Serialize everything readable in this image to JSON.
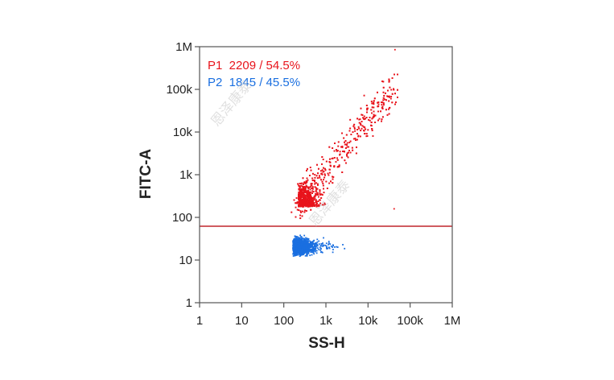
{
  "chart_data": {
    "type": "scatter",
    "xlabel": "SS-H",
    "ylabel": "FITC-A",
    "x_scale": "log",
    "y_scale": "log",
    "xlim": [
      1,
      1000000
    ],
    "ylim": [
      1,
      1000000
    ],
    "x_ticks": [
      {
        "value": 1,
        "label": "1"
      },
      {
        "value": 10,
        "label": "10"
      },
      {
        "value": 100,
        "label": "100"
      },
      {
        "value": 1000,
        "label": "1k"
      },
      {
        "value": 10000,
        "label": "10k"
      },
      {
        "value": 100000,
        "label": "100k"
      },
      {
        "value": 1000000,
        "label": "1M"
      }
    ],
    "y_ticks": [
      {
        "value": 1,
        "label": "1"
      },
      {
        "value": 10,
        "label": "10"
      },
      {
        "value": 100,
        "label": "100"
      },
      {
        "value": 1000,
        "label": "1k"
      },
      {
        "value": 10000,
        "label": "10k"
      },
      {
        "value": 100000,
        "label": "100k"
      },
      {
        "value": 1000000,
        "label": "1M"
      }
    ],
    "gate_threshold_y": 62,
    "gate_line_color": "#c0262c",
    "series": [
      {
        "name": "P1",
        "label": "P1  2209 / 54.5%",
        "count": 2209,
        "percent": 54.5,
        "color": "#e8141c",
        "region": "above threshold",
        "x_range": [
          100,
          50000
        ],
        "y_range": [
          62,
          250000
        ]
      },
      {
        "name": "P2",
        "label": "P2  1845 / 45.5%",
        "count": 1845,
        "percent": 45.5,
        "color": "#1a6fe0",
        "region": "below threshold",
        "x_range": [
          100,
          6000
        ],
        "y_range": [
          7,
          45
        ]
      }
    ],
    "legend_position": "top-left"
  },
  "watermark": "恩泽康泰"
}
